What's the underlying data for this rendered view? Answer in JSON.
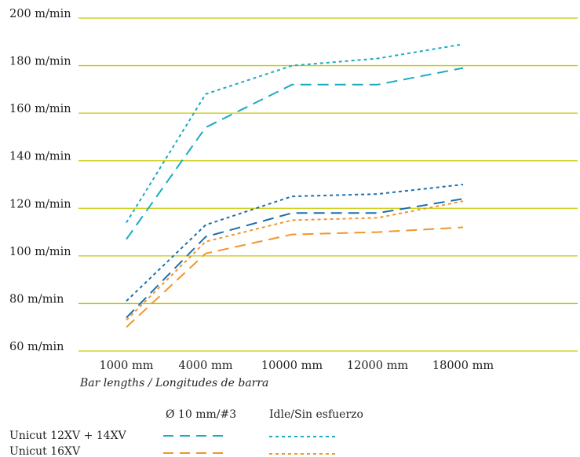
{
  "chart_data": {
    "type": "line",
    "categories": [
      "1000 mm",
      "4000 mm",
      "10000 mm",
      "12000 mm",
      "18000 mm"
    ],
    "xlabel": "Bar lengths / Longitudes de barra",
    "ylabel": "",
    "ylim": [
      60,
      200
    ],
    "y_unit": "m/min",
    "y_ticks": [
      60,
      80,
      100,
      120,
      140,
      160,
      180,
      200
    ],
    "y_tick_labels": [
      "60 m/min",
      "80 m/min",
      "100 m/min",
      "120 m/min",
      "140 m/min",
      "160 m/min",
      "180 m/min",
      "200 m/min"
    ],
    "grid": true,
    "legend": {
      "placement": "bottom-left",
      "column_headers": [
        "Ø 10 mm/#3",
        "Idle/Sin esfuerzo"
      ],
      "rows": [
        "Unicut 12XV + 14XV",
        "Unicut 16XV"
      ]
    },
    "series": [
      {
        "group": "Unicut 12XV + 14XV",
        "condition": "Ø 10 mm/#3",
        "color": "#1aabc0",
        "dash": "long",
        "values": [
          107,
          154,
          172,
          172,
          179
        ]
      },
      {
        "group": "Unicut 12XV + 14XV",
        "condition": "Idle/Sin esfuerzo",
        "color": "#1aabc0",
        "dash": "short",
        "values": [
          114,
          168,
          180,
          183,
          189
        ]
      },
      {
        "group": "",
        "condition": "Ø 10 mm/#3",
        "color": "#1a6fb0",
        "dash": "long",
        "values": [
          74,
          108,
          118,
          118,
          124
        ]
      },
      {
        "group": "",
        "condition": "Idle/Sin esfuerzo",
        "color": "#1a6fb0",
        "dash": "short",
        "values": [
          81,
          113,
          125,
          126,
          130
        ]
      },
      {
        "group": "Unicut 16XV",
        "condition": "Idle/Sin esfuerzo",
        "color": "#f0962d",
        "dash": "short",
        "values": [
          73,
          106,
          115,
          116,
          123
        ]
      },
      {
        "group": "Unicut 16XV",
        "condition": "Ø 10 mm/#3",
        "color": "#f0962d",
        "dash": "long",
        "values": [
          70,
          101,
          109,
          110,
          112
        ]
      }
    ]
  }
}
